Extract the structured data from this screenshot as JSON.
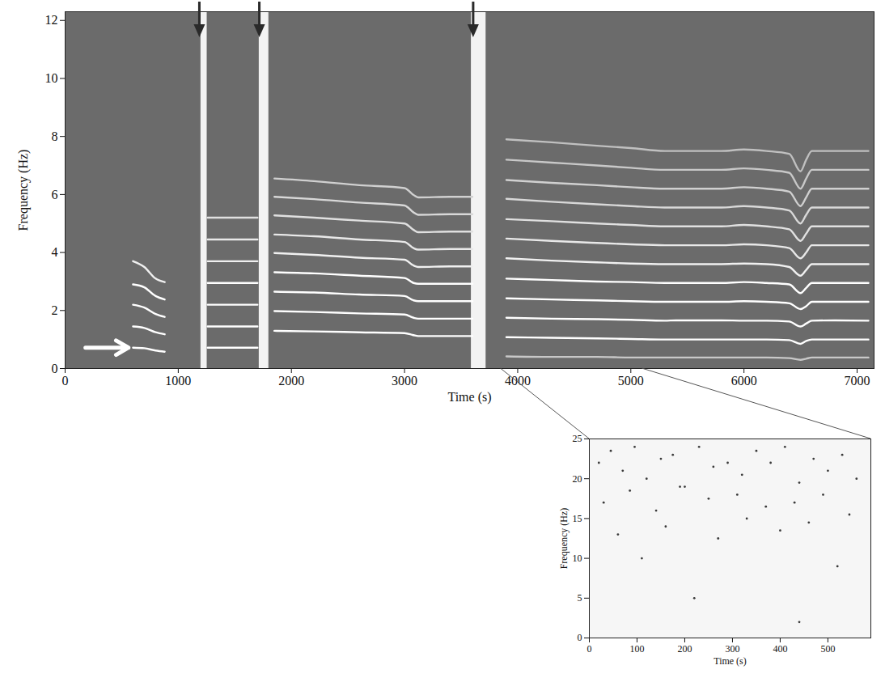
{
  "chart_data": [
    {
      "type": "line",
      "xlabel": "Time (s)",
      "ylabel": "Frequency (Hz)",
      "xlim": [
        0,
        7150
      ],
      "xticks": [
        0,
        1000,
        2000,
        3000,
        4000,
        5000,
        6000,
        7000
      ],
      "ylim": [
        0,
        12.3
      ],
      "yticks": [
        0,
        2,
        4,
        6,
        8,
        10,
        12
      ],
      "color": "#ffffff",
      "x": [
        600,
        700,
        800,
        880,
        1000,
        1260,
        1450,
        1700,
        1780,
        1850,
        2200,
        2600,
        3000,
        3080,
        3120,
        3400,
        3600,
        3700,
        3900,
        4300,
        4700,
        5000,
        5300,
        5400,
        5800,
        6000,
        6200,
        6400,
        6500,
        6550,
        6600,
        6800,
        7100
      ],
      "series": [
        {
          "color": "#c8c8c8",
          "values": [
            null,
            null,
            null,
            null,
            null,
            null,
            null,
            null,
            null,
            null,
            null,
            null,
            null,
            null,
            null,
            null,
            null,
            null,
            0.42,
            0.4,
            0.4,
            0.38,
            0.38,
            0.38,
            0.38,
            0.38,
            0.38,
            0.36,
            0.3,
            0.34,
            0.38,
            0.38,
            0.38
          ]
        },
        {
          "color": "#ffffff",
          "values": [
            0.72,
            0.7,
            0.62,
            0.58,
            null,
            0.72,
            0.72,
            0.72,
            null,
            1.3,
            1.28,
            1.25,
            1.22,
            1.15,
            1.12,
            1.12,
            1.12,
            null,
            1.08,
            1.06,
            1.04,
            1.02,
            1.0,
            1.0,
            1.0,
            1.0,
            1.0,
            0.98,
            0.85,
            0.95,
            1.0,
            1.0,
            1.0
          ]
        },
        {
          "color": "#ffffff",
          "values": [
            1.45,
            1.4,
            1.25,
            1.18,
            null,
            1.45,
            1.45,
            1.45,
            null,
            1.98,
            1.95,
            1.9,
            1.86,
            1.75,
            1.72,
            1.72,
            1.72,
            null,
            1.75,
            1.72,
            1.7,
            1.68,
            1.65,
            1.66,
            1.66,
            1.65,
            1.65,
            1.62,
            1.45,
            1.55,
            1.65,
            1.66,
            1.65
          ]
        },
        {
          "color": "#ffffff",
          "values": [
            2.2,
            2.1,
            1.88,
            1.78,
            null,
            2.2,
            2.2,
            2.2,
            null,
            2.65,
            2.62,
            2.55,
            2.5,
            2.35,
            2.32,
            2.32,
            2.32,
            null,
            2.42,
            2.38,
            2.35,
            2.32,
            2.3,
            2.3,
            2.3,
            2.32,
            2.3,
            2.25,
            2.05,
            2.15,
            2.3,
            2.3,
            2.3
          ]
        },
        {
          "color": "#ffffff",
          "values": [
            2.9,
            2.8,
            2.5,
            2.38,
            null,
            2.95,
            2.95,
            2.95,
            null,
            3.32,
            3.28,
            3.2,
            3.12,
            2.95,
            2.92,
            2.92,
            2.92,
            null,
            3.1,
            3.05,
            3.0,
            2.98,
            2.95,
            2.95,
            2.95,
            2.98,
            2.95,
            2.9,
            2.6,
            2.78,
            2.95,
            2.95,
            2.95
          ]
        },
        {
          "color": "#f0f0f0",
          "values": [
            3.7,
            3.5,
            3.1,
            2.98,
            null,
            3.7,
            3.7,
            3.7,
            null,
            3.98,
            3.92,
            3.82,
            3.75,
            3.55,
            3.5,
            3.52,
            3.52,
            null,
            3.8,
            3.72,
            3.66,
            3.62,
            3.6,
            3.6,
            3.6,
            3.62,
            3.6,
            3.5,
            3.2,
            3.4,
            3.6,
            3.6,
            3.6
          ]
        },
        {
          "color": "#e8e8e8",
          "values": [
            null,
            null,
            null,
            null,
            null,
            4.45,
            4.45,
            4.45,
            null,
            4.62,
            4.56,
            4.45,
            4.36,
            4.15,
            4.1,
            4.12,
            4.12,
            null,
            4.48,
            4.4,
            4.33,
            4.28,
            4.25,
            4.25,
            4.25,
            4.28,
            4.25,
            4.15,
            3.8,
            4.0,
            4.25,
            4.25,
            4.25
          ]
        },
        {
          "color": "#e0e0e0",
          "values": [
            null,
            null,
            null,
            null,
            null,
            5.2,
            5.2,
            5.2,
            null,
            5.28,
            5.2,
            5.1,
            5.0,
            4.78,
            4.7,
            4.72,
            4.72,
            null,
            5.15,
            5.08,
            5.0,
            4.95,
            4.9,
            4.9,
            4.9,
            4.95,
            4.9,
            4.8,
            4.4,
            4.65,
            4.9,
            4.9,
            4.9
          ]
        },
        {
          "color": "#d8d8d8",
          "values": [
            null,
            null,
            null,
            null,
            null,
            null,
            null,
            null,
            null,
            5.92,
            5.84,
            5.72,
            5.62,
            5.38,
            5.3,
            5.32,
            5.32,
            null,
            5.85,
            5.75,
            5.66,
            5.6,
            5.55,
            5.55,
            5.55,
            5.6,
            5.55,
            5.45,
            5.0,
            5.3,
            5.55,
            5.55,
            5.55
          ]
        },
        {
          "color": "#d0d0d0",
          "values": [
            null,
            null,
            null,
            null,
            null,
            null,
            null,
            null,
            null,
            6.55,
            6.46,
            6.32,
            6.22,
            5.98,
            5.9,
            5.92,
            5.92,
            null,
            6.5,
            6.4,
            6.32,
            6.25,
            6.2,
            6.2,
            6.2,
            6.25,
            6.2,
            6.1,
            5.6,
            5.9,
            6.2,
            6.2,
            6.2
          ]
        },
        {
          "color": "#c8c8c8",
          "values": [
            null,
            null,
            null,
            null,
            null,
            null,
            null,
            null,
            null,
            null,
            null,
            null,
            null,
            null,
            null,
            null,
            null,
            null,
            7.2,
            7.1,
            7.0,
            6.92,
            6.85,
            6.85,
            6.85,
            6.9,
            6.85,
            6.75,
            6.2,
            6.55,
            6.85,
            6.85,
            6.85
          ]
        },
        {
          "color": "#c0c0c0",
          "values": [
            null,
            null,
            null,
            null,
            null,
            null,
            null,
            null,
            null,
            null,
            null,
            null,
            null,
            null,
            null,
            null,
            null,
            null,
            7.9,
            7.8,
            7.68,
            7.6,
            7.5,
            7.5,
            7.5,
            7.55,
            7.5,
            7.4,
            6.8,
            7.2,
            7.5,
            7.5,
            7.5
          ]
        }
      ],
      "bands": [
        {
          "x1": 1200,
          "x2": 1255
        },
        {
          "x1": 1715,
          "x2": 1800
        },
        {
          "x1": 3590,
          "x2": 3720
        }
      ],
      "line_arrow": {
        "x1": 180,
        "x2": 560,
        "y": 0.72
      },
      "event_arrows": [
        1190,
        1720,
        3610
      ],
      "zoom_range": [
        3850,
        5100
      ]
    },
    {
      "type": "scatter",
      "xlabel": "Time (s)",
      "ylabel": "Frequency (Hz)",
      "xlim": [
        0,
        590
      ],
      "xticks": [
        0,
        100,
        200,
        300,
        400,
        500
      ],
      "ylim": [
        0,
        25
      ],
      "yticks": [
        0,
        5,
        10,
        15,
        20,
        25
      ],
      "color": "#3a3a3a",
      "x": [
        20,
        45,
        70,
        95,
        120,
        150,
        175,
        200,
        230,
        260,
        290,
        320,
        350,
        380,
        410,
        440,
        470,
        500,
        530,
        560,
        30,
        85,
        140,
        190,
        250,
        310,
        370,
        430,
        490,
        545,
        60,
        160,
        270,
        330,
        400,
        460,
        110,
        220,
        440,
        520
      ],
      "y": [
        22,
        23.5,
        21,
        24,
        20,
        22.5,
        23,
        19,
        24,
        21.5,
        22,
        20.5,
        23.5,
        22,
        24,
        19.5,
        22.5,
        21,
        23,
        20,
        17,
        18.5,
        16,
        19,
        17.5,
        18,
        16.5,
        17,
        18,
        15.5,
        13,
        14,
        12.5,
        15,
        13.5,
        14.5,
        10,
        5,
        2,
        9
      ]
    }
  ]
}
